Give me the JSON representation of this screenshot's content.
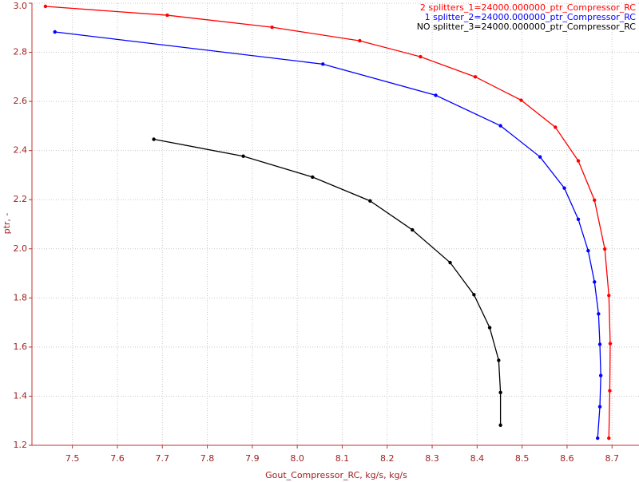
{
  "chart_data": {
    "type": "line",
    "xlabel": "Gout_Compressor_RC, kg/s, kg/s",
    "ylabel": "ptr, -",
    "xlim": [
      7.41,
      8.76
    ],
    "ylim": [
      1.2,
      3.0
    ],
    "xticks": [
      7.5,
      7.6,
      7.7,
      7.8,
      7.9,
      {
        "value": 8,
        "label": "8.0"
      },
      8.1,
      8.2,
      8.3,
      8.4,
      8.5,
      8.6,
      8.7
    ],
    "yticks": [
      1.2,
      1.4,
      1.6,
      1.8,
      {
        "value": 2,
        "label": "2.0"
      },
      2.2,
      2.4,
      2.6,
      2.8,
      {
        "value": 3,
        "label": "3.0"
      }
    ],
    "grid": true,
    "legend": "top-right",
    "series": [
      {
        "name": "2 splitters_1=24000.000000_ptr_Compressor_RC",
        "color": "#ff0000",
        "x": [
          7.44,
          7.711,
          7.944,
          8.139,
          8.274,
          8.396,
          8.498,
          8.574,
          8.625,
          8.661,
          8.684,
          8.693,
          8.696,
          8.695,
          8.693
        ],
        "values": [
          2.987,
          2.951,
          2.902,
          2.847,
          2.782,
          2.7,
          2.605,
          2.495,
          2.358,
          2.198,
          1.999,
          1.81,
          1.614,
          1.422,
          1.229
        ]
      },
      {
        "name": "1 splitter_2=24000.000000_ptr_Compressor_RC",
        "color": "#0000ff",
        "x": [
          7.461,
          8.057,
          8.308,
          8.452,
          8.54,
          8.594,
          8.625,
          8.647,
          8.661,
          8.67,
          8.673,
          8.675,
          8.673,
          8.668
        ],
        "values": [
          2.883,
          2.752,
          2.625,
          2.501,
          2.374,
          2.247,
          2.12,
          1.992,
          1.865,
          1.735,
          1.611,
          1.484,
          1.357,
          1.229
        ]
      },
      {
        "name": "NO splitter_3=24000.000000_ptr_Compressor_RC",
        "color": "#000000",
        "x": [
          7.681,
          7.88,
          8.034,
          8.162,
          8.256,
          8.34,
          8.393,
          8.428,
          8.448,
          8.452,
          8.452
        ],
        "values": [
          2.446,
          2.377,
          2.292,
          2.195,
          2.077,
          1.944,
          1.813,
          1.679,
          1.546,
          1.415,
          1.282
        ]
      }
    ]
  }
}
